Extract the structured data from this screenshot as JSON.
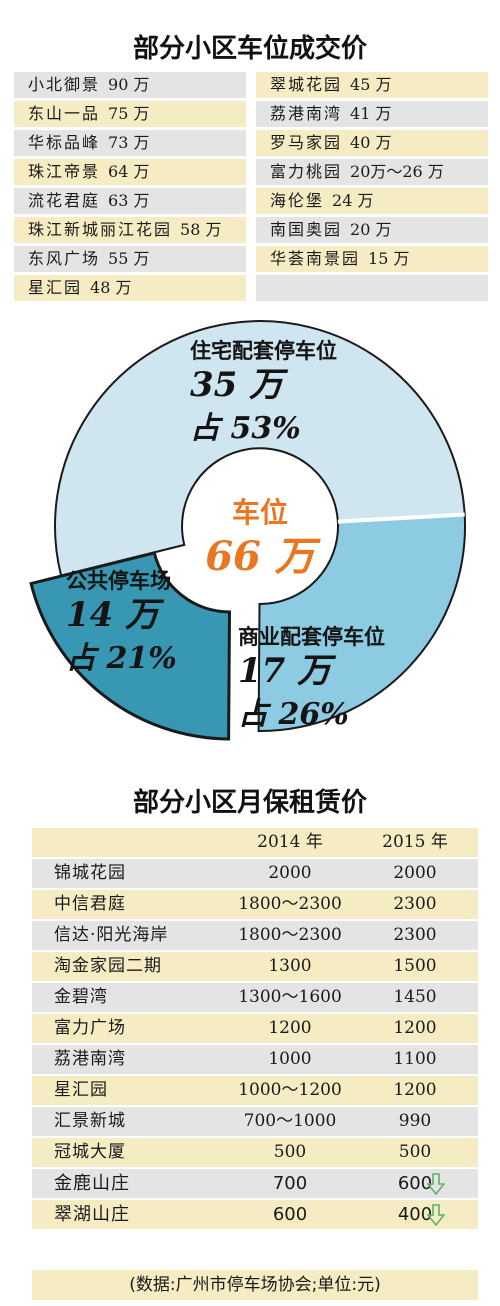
{
  "price_section": {
    "title": "部分小区车位成交价",
    "left": [
      {
        "name": "小北御景",
        "price": "90 万"
      },
      {
        "name": "东山一品",
        "price": "75 万"
      },
      {
        "name": "华标品峰",
        "price": "73 万"
      },
      {
        "name": "珠江帝景",
        "price": "64 万"
      },
      {
        "name": "流花君庭",
        "price": "63 万"
      },
      {
        "name": "珠江新城丽江花园",
        "price": "58 万"
      },
      {
        "name": "东风广场",
        "price": "55 万"
      },
      {
        "name": "星汇园",
        "price": "48 万"
      }
    ],
    "right": [
      {
        "name": "翠城花园",
        "price": "45 万"
      },
      {
        "name": "荔港南湾",
        "price": "41 万"
      },
      {
        "name": "罗马家园",
        "price": "40 万"
      },
      {
        "name": "富力桃园",
        "price": "20万～26 万"
      },
      {
        "name": "海伦堡",
        "price": "24 万"
      },
      {
        "name": "南国奥园",
        "price": "20 万"
      },
      {
        "name": "华荟南景园",
        "price": "15 万"
      },
      {
        "name": "",
        "price": ""
      }
    ]
  },
  "chart_data": {
    "type": "pie",
    "center": {
      "label": "车位",
      "total": "66 万",
      "value": 66
    },
    "slices": [
      {
        "name": "住宅配套停车位",
        "amount": "35 万",
        "value": 35,
        "share_label": "占 53%",
        "percent": 53,
        "color": "#cfe6f0"
      },
      {
        "name": "商业配套停车位",
        "amount": "17 万",
        "value": 17,
        "share_label": "占 26%",
        "percent": 26,
        "color": "#8ccbe2"
      },
      {
        "name": "公共停车场",
        "amount": "14 万",
        "value": 14,
        "share_label": "占 21%",
        "percent": 21,
        "color": "#3898b3"
      }
    ]
  },
  "rent_section": {
    "title": "部分小区月保租赁价",
    "headers": [
      "",
      "2014 年",
      "2015 年"
    ],
    "rows": [
      {
        "name": "锦城花园",
        "y2014": "2000",
        "y2015": "2000",
        "down": false
      },
      {
        "name": "中信君庭",
        "y2014": "1800～2300",
        "y2015": "2300",
        "down": false
      },
      {
        "name": "信达·阳光海岸",
        "y2014": "1800～2300",
        "y2015": "2300",
        "down": false
      },
      {
        "name": "淘金家园二期",
        "y2014": "1300",
        "y2015": "1500",
        "down": false
      },
      {
        "name": "金碧湾",
        "y2014": "1300～1600",
        "y2015": "1450",
        "down": false
      },
      {
        "name": "富力广场",
        "y2014": "1200",
        "y2015": "1200",
        "down": false
      },
      {
        "name": "荔港南湾",
        "y2014": "1000",
        "y2015": "1100",
        "down": false
      },
      {
        "name": "星汇园",
        "y2014": "1000～1200",
        "y2015": "1200",
        "down": false
      },
      {
        "name": "汇景新城",
        "y2014": "700～1000",
        "y2015": "990",
        "down": false
      },
      {
        "name": "冠城大厦",
        "y2014": "500",
        "y2015": "500",
        "down": false
      },
      {
        "name": "金鹿山庄",
        "y2014": "700",
        "y2015": "600",
        "down": true
      },
      {
        "name": "翠湖山庄",
        "y2014": "600",
        "y2015": "400",
        "down": true
      }
    ],
    "source": "(数据:广州市停车场协会;单位:元)",
    "arrow_color": "#5bb36a"
  }
}
